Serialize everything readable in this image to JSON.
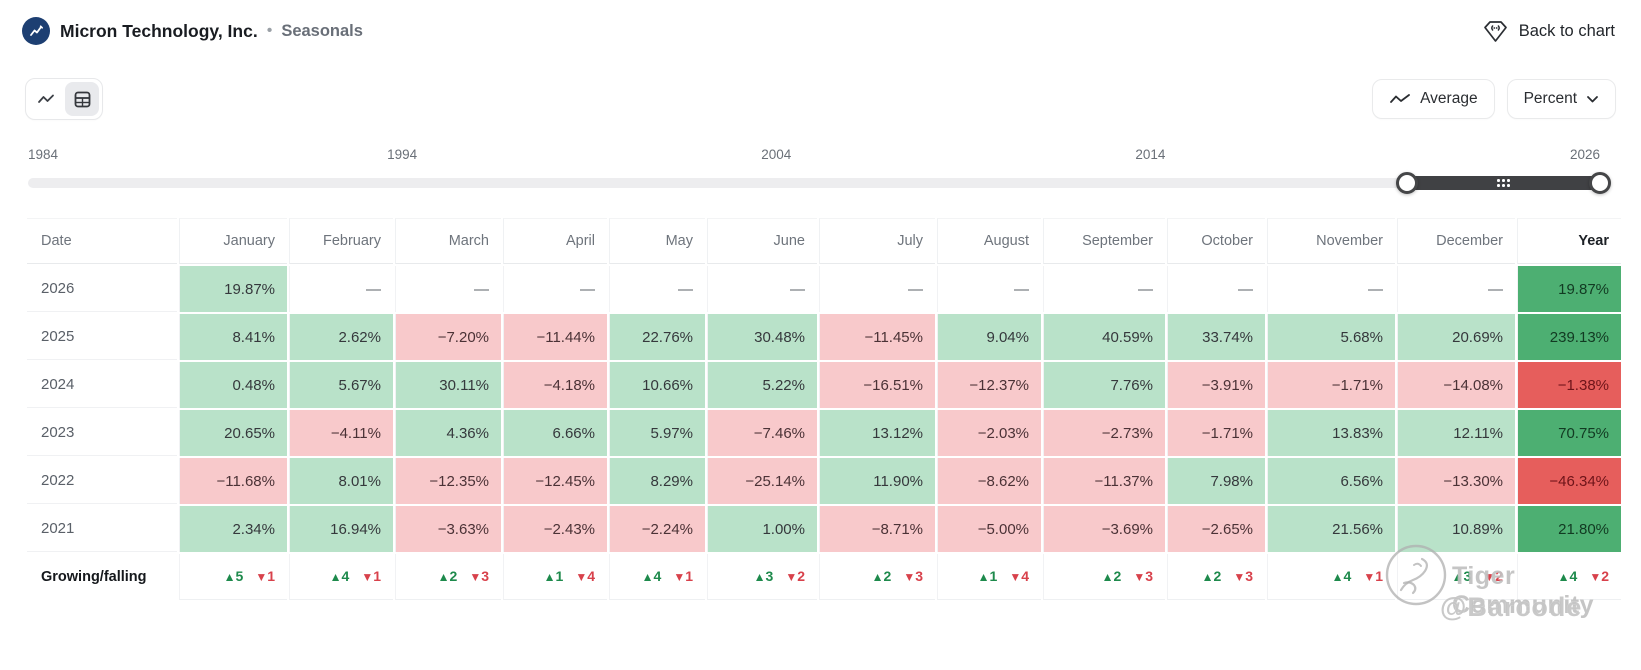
{
  "colors": {
    "positive_bg": "#b9e2c9",
    "negative_bg": "#f8c9cb",
    "positive_strong_bg": "#4daf72",
    "negative_strong_bg": "#e65e5c",
    "up_arrow": "#1e8a4c",
    "down_arrow": "#d8414b",
    "accent_dark": "#404144",
    "logo_bg": "#1d3f72"
  },
  "header": {
    "company": "Micron Technology, Inc.",
    "dot": "•",
    "view": "Seasonals",
    "back_to_chart": "Back to chart"
  },
  "controls": {
    "average": "Average",
    "percent": "Percent"
  },
  "slider": {
    "tick_labels": [
      {
        "text": "1984",
        "pct": 0
      },
      {
        "text": "1994",
        "pct": 23.8
      },
      {
        "text": "2004",
        "pct": 47.6
      },
      {
        "text": "2014",
        "pct": 71.4
      },
      {
        "text": "2026",
        "pct": 100
      }
    ],
    "range_start_pct": 87.7,
    "range_end_pct": 100
  },
  "table": {
    "columns": [
      "Date",
      "January",
      "February",
      "March",
      "April",
      "May",
      "June",
      "July",
      "August",
      "September",
      "October",
      "November",
      "December",
      "Year"
    ],
    "empty_placeholder": "—",
    "rows": [
      {
        "date": "2026",
        "cells": [
          "19.87%",
          "—",
          "—",
          "—",
          "—",
          "—",
          "—",
          "—",
          "—",
          "—",
          "—",
          "—"
        ],
        "year": "19.87%"
      },
      {
        "date": "2025",
        "cells": [
          "8.41%",
          "2.62%",
          "−7.20%",
          "−11.44%",
          "22.76%",
          "30.48%",
          "−11.45%",
          "9.04%",
          "40.59%",
          "33.74%",
          "5.68%",
          "20.69%"
        ],
        "year": "239.13%"
      },
      {
        "date": "2024",
        "cells": [
          "0.48%",
          "5.67%",
          "30.11%",
          "−4.18%",
          "10.66%",
          "5.22%",
          "−16.51%",
          "−12.37%",
          "7.76%",
          "−3.91%",
          "−1.71%",
          "−14.08%"
        ],
        "year": "−1.38%"
      },
      {
        "date": "2023",
        "cells": [
          "20.65%",
          "−4.11%",
          "4.36%",
          "6.66%",
          "5.97%",
          "−7.46%",
          "13.12%",
          "−2.03%",
          "−2.73%",
          "−1.71%",
          "13.83%",
          "12.11%"
        ],
        "year": "70.75%"
      },
      {
        "date": "2022",
        "cells": [
          "−11.68%",
          "8.01%",
          "−12.35%",
          "−12.45%",
          "8.29%",
          "−25.14%",
          "11.90%",
          "−8.62%",
          "−11.37%",
          "7.98%",
          "6.56%",
          "−13.30%"
        ],
        "year": "−46.34%"
      },
      {
        "date": "2021",
        "cells": [
          "2.34%",
          "16.94%",
          "−3.63%",
          "−2.43%",
          "−2.24%",
          "1.00%",
          "−8.71%",
          "−5.00%",
          "−3.69%",
          "−2.65%",
          "21.56%",
          "10.89%"
        ],
        "year": "21.80%"
      }
    ],
    "summary": {
      "label": "Growing/falling",
      "up_glyph": "▲",
      "down_glyph": "▼",
      "cells": [
        {
          "up": 5,
          "down": 1
        },
        {
          "up": 4,
          "down": 1
        },
        {
          "up": 2,
          "down": 3
        },
        {
          "up": 1,
          "down": 4
        },
        {
          "up": 4,
          "down": 1
        },
        {
          "up": 3,
          "down": 2
        },
        {
          "up": 2,
          "down": 3
        },
        {
          "up": 1,
          "down": 4
        },
        {
          "up": 2,
          "down": 3
        },
        {
          "up": 2,
          "down": 3
        },
        {
          "up": 4,
          "down": 1
        },
        {
          "up": 3,
          "down": 2
        },
        {
          "up": 4,
          "down": 2
        }
      ]
    }
  },
  "watermark": {
    "community": "Tiger Community",
    "handle": "@Barcode"
  }
}
